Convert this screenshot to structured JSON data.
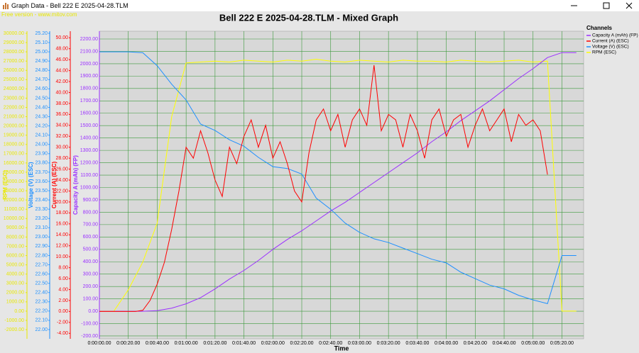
{
  "window": {
    "title": "Graph Data - Bell 222 E 2025-04-28.TLM"
  },
  "watermark": "Free version - www.mitov.com",
  "chart_data": {
    "type": "line",
    "title": "Bell 222 E 2025-04-28.TLM - Mixed Graph",
    "x_label": "Time",
    "legend_title": "Channels",
    "grid": true,
    "xlim": [
      0,
      335
    ],
    "xticks": [
      {
        "value": 0,
        "label": "0:00:00.00"
      },
      {
        "value": 20,
        "label": "0:00:20.00"
      },
      {
        "value": 40,
        "label": "0:00:40.00"
      },
      {
        "value": 60,
        "label": "0:01:00.00"
      },
      {
        "value": 80,
        "label": "0:01:20.00"
      },
      {
        "value": 100,
        "label": "0:01:40.00"
      },
      {
        "value": 120,
        "label": "0:02:00.00"
      },
      {
        "value": 140,
        "label": "0:02:20.00"
      },
      {
        "value": 160,
        "label": "0:02:40.00"
      },
      {
        "value": 180,
        "label": "0:03:00.00"
      },
      {
        "value": 200,
        "label": "0:03:20.00"
      },
      {
        "value": 220,
        "label": "0:03:40.00"
      },
      {
        "value": 240,
        "label": "0:04:00.00"
      },
      {
        "value": 260,
        "label": "0:04:20.00"
      },
      {
        "value": 280,
        "label": "0:04:40.00"
      },
      {
        "value": 300,
        "label": "0:05:00.00"
      },
      {
        "value": 320,
        "label": "0:05:20.00"
      }
    ],
    "axes": [
      {
        "label": "RPM (ESC)",
        "color": "#e8e800",
        "lim": [
          -2990,
          30230
        ],
        "ticks": [
          {
            "value": -2000,
            "label": "-2000.00"
          },
          {
            "value": -1000,
            "label": "-1000.00"
          },
          {
            "value": 0,
            "label": "0.00"
          },
          {
            "value": 1000,
            "label": "1000.00"
          },
          {
            "value": 2000,
            "label": "2000.00"
          },
          {
            "value": 3000,
            "label": "3000.00"
          },
          {
            "value": 4000,
            "label": "4000.00"
          },
          {
            "value": 5000,
            "label": "5000.00"
          },
          {
            "value": 6000,
            "label": "6000.00"
          },
          {
            "value": 7000,
            "label": "7000.00"
          },
          {
            "value": 8000,
            "label": "8000.00"
          },
          {
            "value": 9000,
            "label": "9000.00"
          },
          {
            "value": 10000,
            "label": "10000.00"
          },
          {
            "value": 11000,
            "label": "11000.00"
          },
          {
            "value": 12000,
            "label": "12000.00"
          },
          {
            "value": 13000,
            "label": "13000.00"
          },
          {
            "value": 14000,
            "label": "14000.00"
          },
          {
            "value": 15000,
            "label": "15000.00"
          },
          {
            "value": 16000,
            "label": "16000.00"
          },
          {
            "value": 17000,
            "label": "17000.00"
          },
          {
            "value": 18000,
            "label": "18000.00"
          },
          {
            "value": 19000,
            "label": "19000.00"
          },
          {
            "value": 20000,
            "label": "20000.00"
          },
          {
            "value": 21000,
            "label": "21000.00"
          },
          {
            "value": 22000,
            "label": "22000.00"
          },
          {
            "value": 23000,
            "label": "23000.00"
          },
          {
            "value": 24000,
            "label": "24000.00"
          },
          {
            "value": 25000,
            "label": "25000.00"
          },
          {
            "value": 26000,
            "label": "26000.00"
          },
          {
            "value": 27000,
            "label": "27000.00"
          },
          {
            "value": 28000,
            "label": "28000.00"
          },
          {
            "value": 29000,
            "label": "29000.00"
          },
          {
            "value": 30000,
            "label": "30000.00"
          }
        ]
      },
      {
        "label": "Voltage (V) (ESC)",
        "color": "#1e90ff",
        "lim": [
          21.9,
          25.223
        ],
        "ticks": [
          {
            "value": 22.0,
            "label": "22.00"
          },
          {
            "value": 22.1,
            "label": "22.10"
          },
          {
            "value": 22.2,
            "label": "22.20"
          },
          {
            "value": 22.3,
            "label": "22.30"
          },
          {
            "value": 22.4,
            "label": "22.40"
          },
          {
            "value": 22.5,
            "label": "22.50"
          },
          {
            "value": 22.6,
            "label": "22.60"
          },
          {
            "value": 22.7,
            "label": "22.70"
          },
          {
            "value": 22.8,
            "label": "22.80"
          },
          {
            "value": 22.9,
            "label": "22.90"
          },
          {
            "value": 23.0,
            "label": "23.00"
          },
          {
            "value": 23.1,
            "label": "23.10"
          },
          {
            "value": 23.2,
            "label": "23.20"
          },
          {
            "value": 23.3,
            "label": "23.30"
          },
          {
            "value": 23.4,
            "label": "23.40"
          },
          {
            "value": 23.5,
            "label": "23.50"
          },
          {
            "value": 23.6,
            "label": "23.60"
          },
          {
            "value": 23.7,
            "label": "23.70"
          },
          {
            "value": 23.8,
            "label": "23.80"
          },
          {
            "value": 23.9,
            "label": "23.90"
          },
          {
            "value": 24.0,
            "label": "24.00"
          },
          {
            "value": 24.1,
            "label": "24.10"
          },
          {
            "value": 24.2,
            "label": "24.20"
          },
          {
            "value": 24.3,
            "label": "24.30"
          },
          {
            "value": 24.4,
            "label": "24.40"
          },
          {
            "value": 24.5,
            "label": "24.50"
          },
          {
            "value": 24.6,
            "label": "24.60"
          },
          {
            "value": 24.7,
            "label": "24.70"
          },
          {
            "value": 24.8,
            "label": "24.80"
          },
          {
            "value": 24.9,
            "label": "24.90"
          },
          {
            "value": 25.0,
            "label": "25.00"
          },
          {
            "value": 25.1,
            "label": "25.10"
          },
          {
            "value": 25.2,
            "label": "25.20"
          }
        ]
      },
      {
        "label": "Current (A) (ESC)",
        "color": "#ff0000",
        "lim": [
          -5.0,
          51.2
        ],
        "ticks": [
          {
            "value": -4,
            "label": "-4.00"
          },
          {
            "value": -2,
            "label": "-2.00"
          },
          {
            "value": 0,
            "label": "0.00"
          },
          {
            "value": 2,
            "label": "2.00"
          },
          {
            "value": 4,
            "label": "4.00"
          },
          {
            "value": 6,
            "label": "6.00"
          },
          {
            "value": 8,
            "label": "8.00"
          },
          {
            "value": 10,
            "label": "10.00"
          },
          {
            "value": 12,
            "label": "12.00"
          },
          {
            "value": 14,
            "label": "14.00"
          },
          {
            "value": 16,
            "label": "16.00"
          },
          {
            "value": 18,
            "label": "18.00"
          },
          {
            "value": 20,
            "label": "20.00"
          },
          {
            "value": 22,
            "label": "22.00"
          },
          {
            "value": 24,
            "label": "24.00"
          },
          {
            "value": 26,
            "label": "26.00"
          },
          {
            "value": 28,
            "label": "28.00"
          },
          {
            "value": 30,
            "label": "30.00"
          },
          {
            "value": 32,
            "label": "32.00"
          },
          {
            "value": 34,
            "label": "34.00"
          },
          {
            "value": 36,
            "label": "36.00"
          },
          {
            "value": 38,
            "label": "38.00"
          },
          {
            "value": 40,
            "label": "40.00"
          },
          {
            "value": 42,
            "label": "42.00"
          },
          {
            "value": 44,
            "label": "44.00"
          },
          {
            "value": 46,
            "label": "46.00"
          },
          {
            "value": 48,
            "label": "48.00"
          },
          {
            "value": 50,
            "label": "50.00"
          }
        ]
      },
      {
        "label": "Capacity A (mAh) (FP)",
        "color": "#9b30ff",
        "lim": [
          -223,
          2263
        ],
        "ticks": [
          {
            "value": -200,
            "label": "-200.00"
          },
          {
            "value": -100,
            "label": "-100.00"
          },
          {
            "value": 0,
            "label": "0.00"
          },
          {
            "value": 100,
            "label": "100.00"
          },
          {
            "value": 200,
            "label": "200.00"
          },
          {
            "value": 300,
            "label": "300.00"
          },
          {
            "value": 400,
            "label": "400.00"
          },
          {
            "value": 500,
            "label": "500.00"
          },
          {
            "value": 600,
            "label": "600.00"
          },
          {
            "value": 700,
            "label": "700.00"
          },
          {
            "value": 800,
            "label": "800.00"
          },
          {
            "value": 900,
            "label": "900.00"
          },
          {
            "value": 1000,
            "label": "1000.00"
          },
          {
            "value": 1100,
            "label": "1100.00"
          },
          {
            "value": 1200,
            "label": "1200.00"
          },
          {
            "value": 1300,
            "label": "1300.00"
          },
          {
            "value": 1400,
            "label": "1400.00"
          },
          {
            "value": 1500,
            "label": "1500.00"
          },
          {
            "value": 1600,
            "label": "1600.00"
          },
          {
            "value": 1700,
            "label": "1700.00"
          },
          {
            "value": 1800,
            "label": "1800.00"
          },
          {
            "value": 1900,
            "label": "1900.00"
          },
          {
            "value": 2000,
            "label": "2000.00"
          },
          {
            "value": 2100,
            "label": "2100.00"
          },
          {
            "value": 2200,
            "label": "2200.00"
          }
        ]
      }
    ],
    "series": [
      {
        "name": "Capacity A (mAh) (FP)",
        "color": "#9b30ff",
        "axis": 3,
        "x": [
          0,
          10,
          20,
          30,
          40,
          50,
          60,
          70,
          80,
          90,
          100,
          110,
          120,
          130,
          140,
          150,
          160,
          170,
          180,
          190,
          200,
          210,
          220,
          230,
          240,
          250,
          260,
          270,
          280,
          290,
          300,
          310,
          320,
          330
        ],
        "values": [
          0,
          0,
          0,
          0,
          5,
          25,
          60,
          110,
          180,
          260,
          330,
          410,
          500,
          580,
          650,
          730,
          810,
          880,
          960,
          1040,
          1120,
          1200,
          1280,
          1370,
          1450,
          1540,
          1620,
          1700,
          1790,
          1880,
          1960,
          2050,
          2090,
          2090
        ]
      },
      {
        "name": "Current (A) (ESC)",
        "color": "#ff0000",
        "axis": 2,
        "x": [
          0,
          5,
          10,
          15,
          20,
          25,
          30,
          35,
          40,
          45,
          50,
          55,
          60,
          65,
          70,
          75,
          80,
          85,
          90,
          95,
          100,
          105,
          110,
          115,
          120,
          125,
          130,
          135,
          140,
          145,
          150,
          155,
          160,
          165,
          170,
          175,
          180,
          185,
          190,
          195,
          200,
          205,
          210,
          215,
          220,
          225,
          230,
          235,
          240,
          245,
          250,
          255,
          260,
          265,
          270,
          275,
          280,
          285,
          290,
          295,
          300,
          305,
          310
        ],
        "values": [
          0,
          0,
          0,
          0,
          0,
          0,
          0.2,
          2,
          5,
          9,
          15,
          22,
          30,
          28,
          33,
          29,
          24,
          21,
          30,
          27,
          32,
          35,
          30,
          34,
          28,
          31,
          27,
          22,
          20,
          29,
          35,
          37,
          33,
          36,
          30,
          35,
          37,
          34,
          45,
          33,
          36,
          35,
          30,
          36,
          33,
          28,
          35,
          37,
          32,
          35,
          36,
          30,
          34,
          37,
          33,
          35,
          37,
          31,
          36,
          34,
          35,
          33,
          25
        ]
      },
      {
        "name": "Voltage (V) (ESC)",
        "color": "#1e90ff",
        "axis": 1,
        "x": [
          0,
          10,
          20,
          30,
          40,
          50,
          60,
          70,
          80,
          90,
          100,
          110,
          120,
          130,
          140,
          150,
          160,
          170,
          180,
          190,
          200,
          210,
          220,
          230,
          240,
          250,
          260,
          270,
          280,
          290,
          300,
          310,
          320,
          330
        ],
        "values": [
          25.0,
          25.0,
          25.0,
          24.99,
          24.85,
          24.65,
          24.48,
          24.22,
          24.15,
          24.05,
          23.98,
          23.86,
          23.76,
          23.74,
          23.68,
          23.42,
          23.3,
          23.15,
          23.05,
          22.98,
          22.94,
          22.88,
          22.82,
          22.76,
          22.72,
          22.62,
          22.55,
          22.48,
          22.44,
          22.37,
          22.32,
          22.28,
          22.8,
          22.8
        ]
      },
      {
        "name": "RPM (ESC)",
        "color": "#ffff00",
        "axis": 0,
        "x": [
          0,
          10,
          20,
          30,
          40,
          50,
          60,
          70,
          80,
          90,
          100,
          110,
          120,
          130,
          140,
          150,
          160,
          170,
          180,
          190,
          200,
          210,
          220,
          230,
          240,
          250,
          260,
          270,
          280,
          290,
          300,
          310,
          320,
          330
        ],
        "values": [
          0,
          0,
          2300,
          5300,
          9500,
          21000,
          26800,
          26900,
          27000,
          26900,
          27100,
          27000,
          26900,
          27100,
          27000,
          27200,
          27000,
          26900,
          27100,
          27000,
          26900,
          27100,
          27000,
          27000,
          26900,
          27100,
          27000,
          26900,
          27000,
          27100,
          26900,
          27000,
          0,
          0
        ]
      }
    ]
  }
}
